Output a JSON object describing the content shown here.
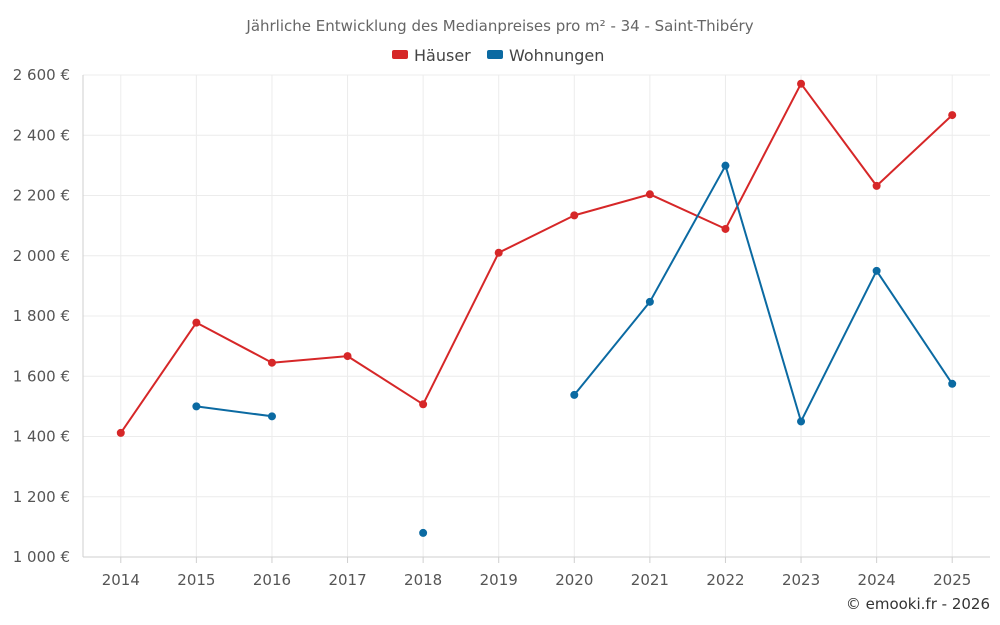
{
  "chart_data": {
    "type": "line",
    "title": "Jährliche Entwicklung des Medianpreises pro m² - 34 - Saint-Thibéry",
    "categories": [
      "2014",
      "2015",
      "2016",
      "2017",
      "2018",
      "2019",
      "2020",
      "2021",
      "2022",
      "2023",
      "2024",
      "2025"
    ],
    "series": [
      {
        "name": "Häuser",
        "color": "#d62728",
        "values": [
          1412,
          1778,
          1645,
          1667,
          1507,
          2010,
          2134,
          2204,
          2089,
          2571,
          2232,
          2467
        ]
      },
      {
        "name": "Wohnungen",
        "color": "#0b6aa2",
        "values": [
          null,
          1500,
          1467,
          null,
          1080,
          null,
          1538,
          1847,
          2299,
          1450,
          1950,
          1575
        ]
      }
    ],
    "ylim": [
      1000,
      2600
    ],
    "yticks": [
      1000,
      1200,
      1400,
      1600,
      1800,
      2000,
      2200,
      2400,
      2600
    ],
    "ytick_labels": [
      "1 000 €",
      "1 200 €",
      "1 400 €",
      "1 600 €",
      "1 800 €",
      "2 000 €",
      "2 200 €",
      "2 400 €",
      "2 600 €"
    ],
    "xlabel": "",
    "ylabel": "",
    "grid": true,
    "legend_position": "top-center"
  },
  "credit": "© emooki.fr - 2026"
}
